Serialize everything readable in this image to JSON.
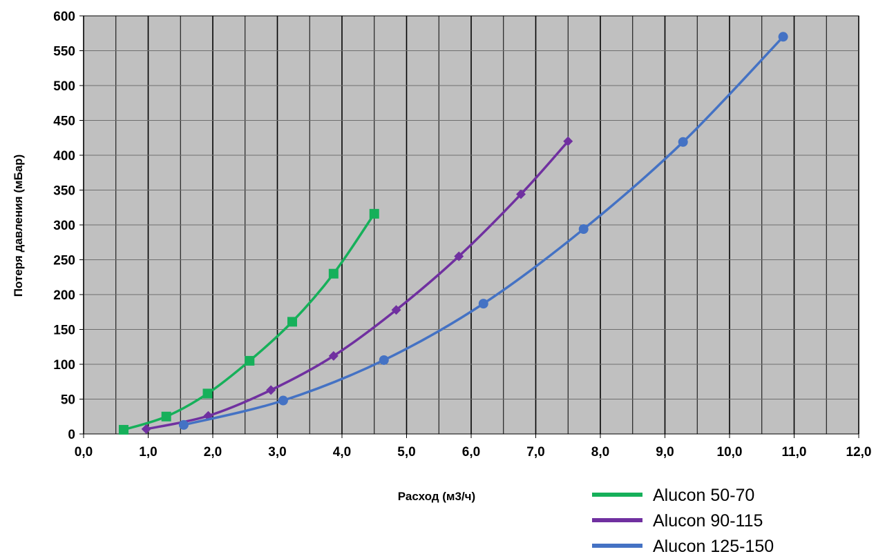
{
  "chart_data": {
    "type": "line",
    "title": "",
    "xlabel": "Расход (м3/ч)",
    "ylabel": "Потеря давления (мБар)",
    "xlim": [
      0,
      12
    ],
    "ylim": [
      0,
      600
    ],
    "x_ticks": [
      "0,0",
      "1,0",
      "2,0",
      "3,0",
      "4,0",
      "5,0",
      "6,0",
      "7,0",
      "8,0",
      "9,0",
      "10,0",
      "11,0",
      "12,0"
    ],
    "y_ticks": [
      "0",
      "50",
      "100",
      "150",
      "200",
      "250",
      "300",
      "350",
      "400",
      "450",
      "500",
      "550",
      "600"
    ],
    "grid": true,
    "legend_position": "bottom-right",
    "series": [
      {
        "name": "Alucon 50-70",
        "color": "#16b05a",
        "marker": "square",
        "points": [
          [
            0.62,
            6
          ],
          [
            1.28,
            25
          ],
          [
            1.92,
            58
          ],
          [
            2.57,
            105
          ],
          [
            3.23,
            161
          ],
          [
            3.87,
            230
          ],
          [
            4.5,
            316
          ]
        ]
      },
      {
        "name": "Alucon 90-115",
        "color": "#7030a0",
        "marker": "diamond",
        "points": [
          [
            0.97,
            7
          ],
          [
            1.93,
            26
          ],
          [
            2.9,
            63
          ],
          [
            3.87,
            112
          ],
          [
            4.84,
            178
          ],
          [
            5.81,
            255
          ],
          [
            6.77,
            344
          ],
          [
            7.5,
            420
          ]
        ]
      },
      {
        "name": "Alucon 125-150",
        "color": "#4472c4",
        "marker": "circle",
        "points": [
          [
            1.55,
            13
          ],
          [
            3.09,
            48
          ],
          [
            4.65,
            106
          ],
          [
            6.19,
            187
          ],
          [
            7.74,
            294
          ],
          [
            9.28,
            419
          ],
          [
            10.83,
            570
          ]
        ]
      }
    ]
  }
}
